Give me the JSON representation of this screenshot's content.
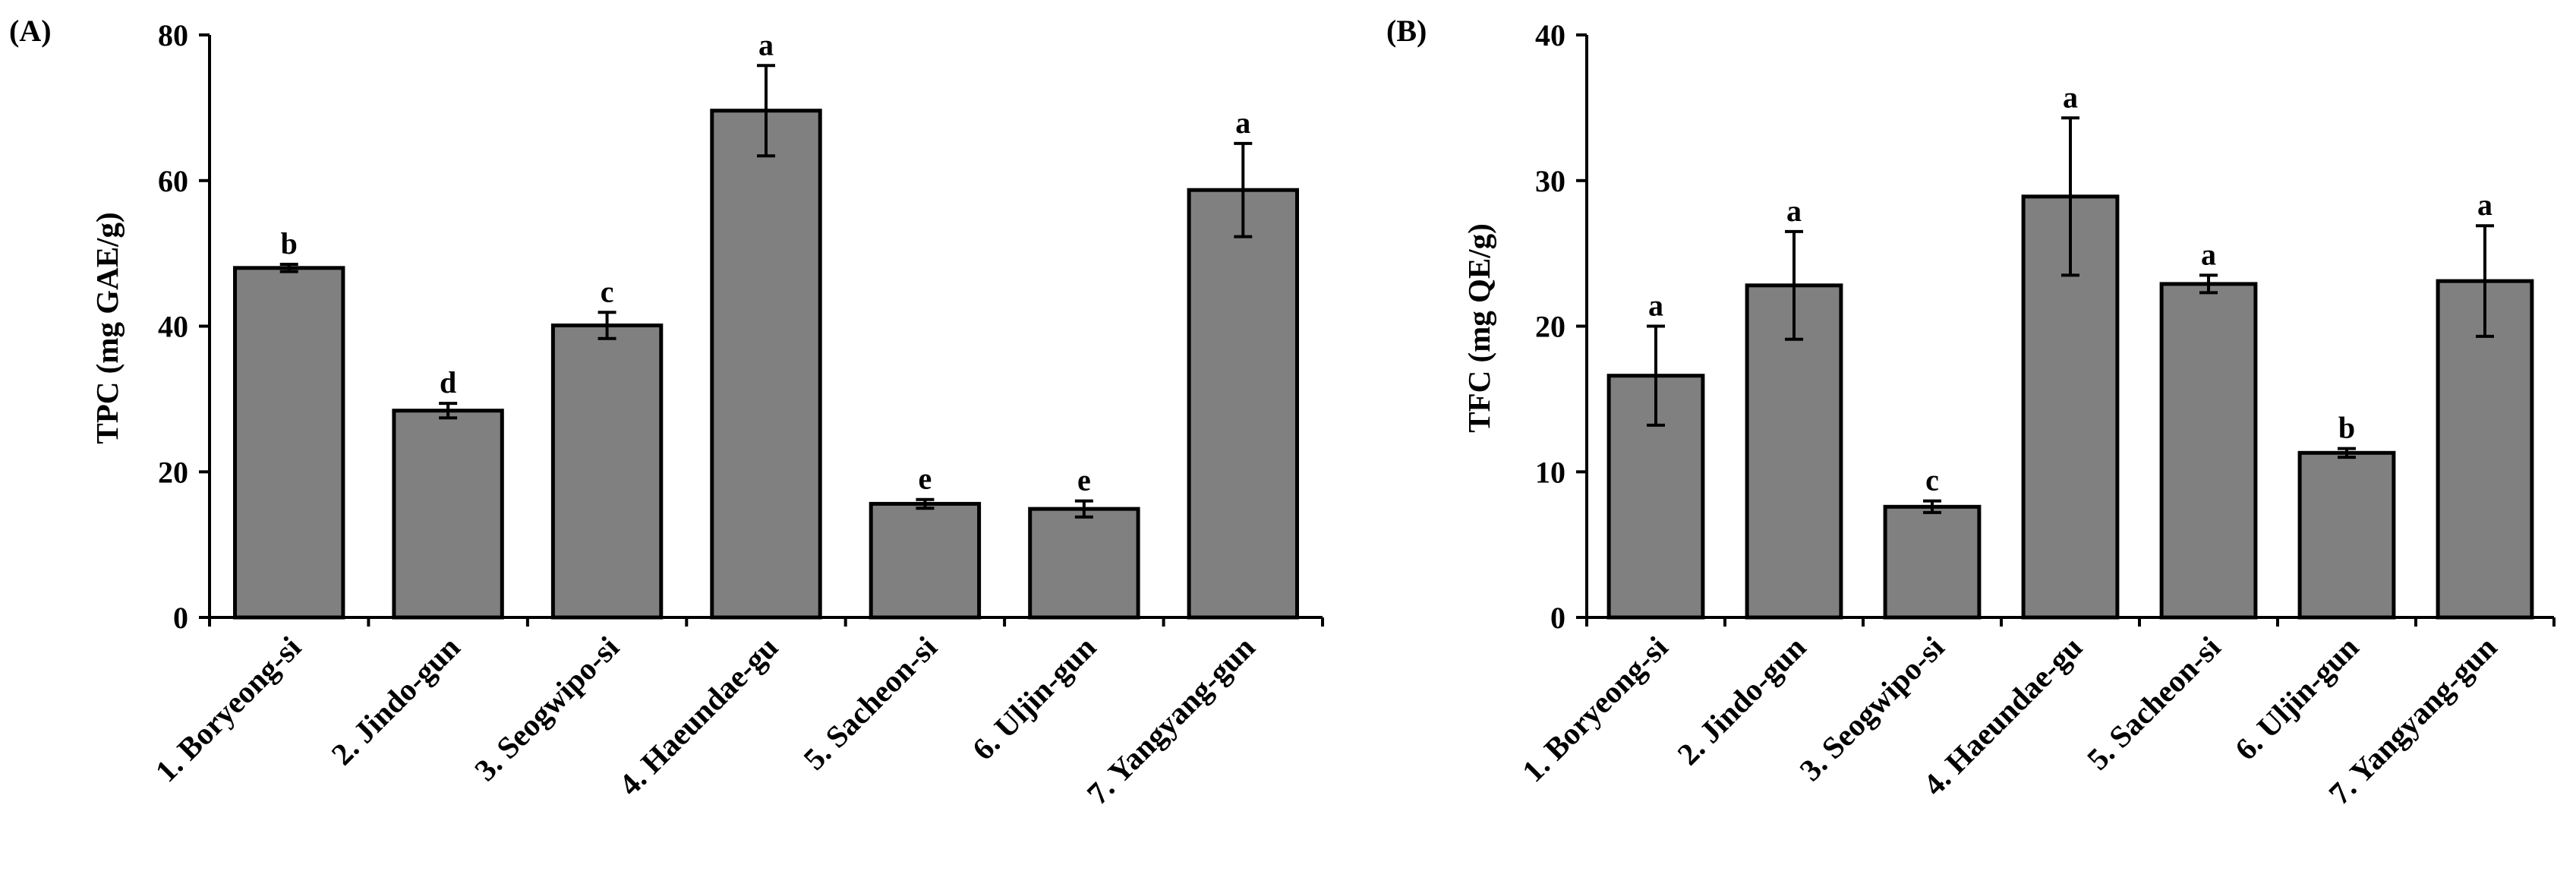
{
  "colors": {
    "bar_fill": "#808080",
    "stroke": "#000000",
    "background": "#ffffff"
  },
  "chart_data": [
    {
      "panel_label": "(A)",
      "type": "bar",
      "ylabel": "TPC (mg GAE/g)",
      "ylim": [
        0,
        80
      ],
      "yticks": [
        "0",
        "20",
        "40",
        "60",
        "80"
      ],
      "categories": [
        "1. Boryeong-si",
        "2. Jindo-gun",
        "3. Seogwipo-si",
        "4. Haeundae-gu",
        "5. Sacheon-si",
        "6. Uljin-gun",
        "7. Yangyang-gun"
      ],
      "values": [
        48.0,
        28.4,
        40.1,
        69.6,
        15.6,
        14.9,
        58.7
      ],
      "errors": [
        0.5,
        1.0,
        1.8,
        6.2,
        0.6,
        1.1,
        6.4
      ],
      "significance": [
        "b",
        "d",
        "c",
        "a",
        "e",
        "e",
        "a"
      ]
    },
    {
      "panel_label": "(B)",
      "type": "bar",
      "ylabel": "TFC (mg QE/g)",
      "ylim": [
        0,
        40
      ],
      "yticks": [
        "0",
        "10",
        "20",
        "30",
        "40"
      ],
      "categories": [
        "1. Boryeong-si",
        "2. Jindo-gun",
        "3. Seogwipo-si",
        "4. Haeundae-gu",
        "5. Sacheon-si",
        "6. Uljin-gun",
        "7. Yangyang-gun"
      ],
      "values": [
        16.6,
        22.8,
        7.6,
        28.9,
        22.9,
        11.3,
        23.1
      ],
      "errors": [
        3.4,
        3.7,
        0.4,
        5.4,
        0.6,
        0.3,
        3.8
      ],
      "significance": [
        "a",
        "a",
        "c",
        "a",
        "a",
        "b",
        "a"
      ]
    }
  ]
}
